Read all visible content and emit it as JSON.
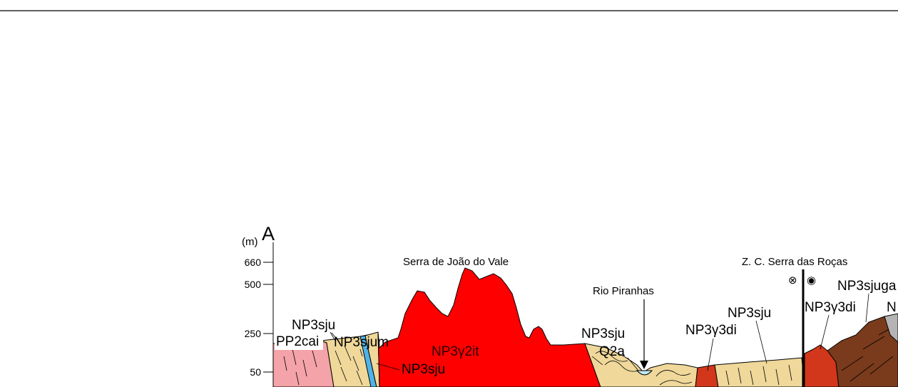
{
  "section": {
    "end_label": "A",
    "unit_label": "(m)",
    "elevation_ticks": [
      "660",
      "500",
      "250",
      "50"
    ]
  },
  "features": {
    "mountain": "Serra de João do Vale",
    "river": "Rio Piranhas",
    "shear_zone": "Z. C. Serra das Roças"
  },
  "units": {
    "pp2cai": "PP2cai",
    "np3sju_1": "NP3sju",
    "np3sjum": "NP3sjum",
    "np3sju_2": "NP3sju",
    "np3g2it": "NP3γ2it",
    "np3sju_3": "NP3sju",
    "q2a": "Q2a",
    "np3g3di_1": "NP3γ3di",
    "np3sju_4": "NP3sju",
    "np3g3di_2": "NP3γ3di",
    "np3sjuga": "NP3sjuga",
    "n_cut": "N"
  },
  "colors": {
    "pp2cai": "#f4a3a8",
    "np3sju": "#efd89a",
    "np3sjum": "#4fb3e8",
    "granite_red": "#ff0000",
    "diorite_red": "#d2371b",
    "brown": "#7a3b1c",
    "grey": "#b4b4b4",
    "river": "#bfe8f4"
  },
  "symbols": {
    "out_of_page": "⊗",
    "into_page": "◉"
  }
}
